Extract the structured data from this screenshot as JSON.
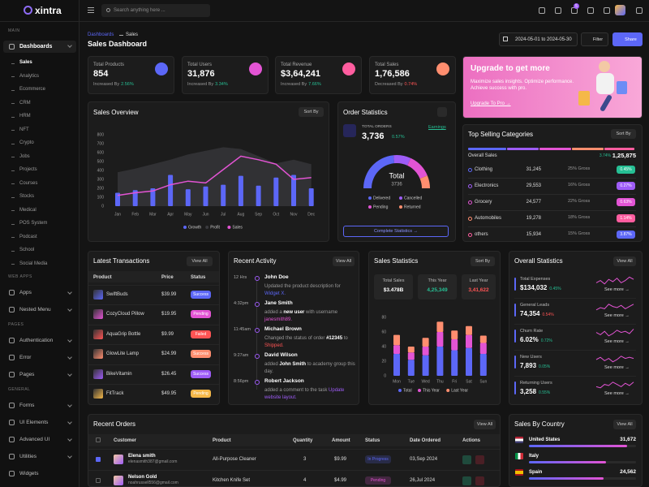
{
  "header": {
    "logo": "xintra",
    "search_placeholder": "Search anything here ...",
    "cart_badge": "5"
  },
  "sidebar": {
    "main_label": "MAIN",
    "dashboards": "Dashboards",
    "dashboard_items": [
      "Sales",
      "Analytics",
      "Ecommerce",
      "CRM",
      "HRM",
      "NFT",
      "Crypto",
      "Jobs",
      "Projects",
      "Courses",
      "Stocks",
      "Medical",
      "POS System",
      "Podcast",
      "School",
      "Social Media"
    ],
    "groups": [
      {
        "label": "WEB APPS",
        "items": [
          "Apps",
          "Nested Menu"
        ]
      },
      {
        "label": "PAGES",
        "items": [
          "Authentication",
          "Error",
          "Pages"
        ]
      },
      {
        "label": "GENERAL",
        "items": [
          "Forms",
          "UI Elements",
          "Advanced UI",
          "Utilities",
          "Widgets"
        ]
      }
    ]
  },
  "page_header": {
    "breadcrumb": [
      "Dashboards",
      "Sales"
    ],
    "title": "Sales Dashboard",
    "date_range": "2024-05-01 to 2024-05-30",
    "filter": "Filter",
    "share": "Share"
  },
  "stat_cards": [
    {
      "title": "Total Products",
      "value": "854",
      "note": "Increased By",
      "change": "2.56%",
      "change_color": "#26bf94",
      "icon_color": "#5c67f7"
    },
    {
      "title": "Total Users",
      "value": "31,876",
      "note": "Increased By",
      "change": "3.34%",
      "change_color": "#26bf94",
      "icon_color": "#e354d4"
    },
    {
      "title": "Total Revenue",
      "value": "$3,64,241",
      "note": "Increased By",
      "change": "7.66%",
      "change_color": "#26bf94",
      "icon_color": "#ff5d9f"
    },
    {
      "title": "Total Sales",
      "value": "1,76,586",
      "note": "Decreased By",
      "change": "0.74%",
      "change_color": "#fe5454",
      "icon_color": "#ff8e6f"
    }
  ],
  "promo": {
    "title": "Upgrade to get more",
    "text": "Maximize sales insights. Optimize performance. Achieve success with pro.",
    "link": "Upgrade To Pro →"
  },
  "top_selling": {
    "title": "Top Selling Categories",
    "sort_button": "Sort By",
    "overall_label": "Overall Sales",
    "overall_change": "3.74%",
    "overall_value": "1,25,875",
    "rows": [
      {
        "name": "Clothing",
        "value": "31,245",
        "gross": "25% Gross",
        "change": "0.45%",
        "color": "#26bf94",
        "dot": "#5c67f7"
      },
      {
        "name": "Electronics",
        "value": "29,553",
        "gross": "16% Gross",
        "change": "0.27%",
        "color": "#9e5cf7",
        "dot": "#9e5cf7"
      },
      {
        "name": "Grocery",
        "value": "24,577",
        "gross": "22% Gross",
        "change": "0.63%",
        "color": "#e354d4",
        "dot": "#e354d4"
      },
      {
        "name": "Automobiles",
        "value": "19,278",
        "gross": "18% Gross",
        "change": "1.14%",
        "color": "#ff5d9f",
        "dot": "#ff8e6f"
      },
      {
        "name": "others",
        "value": "15,934",
        "gross": "15% Gross",
        "change": "3.87%",
        "color": "#5c67f7",
        "dot": "#ff5d9f"
      }
    ]
  },
  "latest_transactions": {
    "title": "Latest Transactions",
    "view_all": "View All",
    "columns": [
      "Product",
      "Price",
      "Status"
    ],
    "rows": [
      {
        "product": "SwiftBuds",
        "price": "$39.99",
        "status": "Success",
        "color": "#5c67f7"
      },
      {
        "product": "CozyCloud Pillow",
        "price": "$19.95",
        "status": "Pending",
        "color": "#e354d4"
      },
      {
        "product": "AquaGrip Bottle",
        "price": "$9.99",
        "status": "Failed",
        "color": "#fe5454"
      },
      {
        "product": "GlowLite Lamp",
        "price": "$24.99",
        "status": "Success",
        "color": "#ff8e6f"
      },
      {
        "product": "BikeVitamin",
        "price": "$26.45",
        "status": "Success",
        "color": "#9e5cf7"
      },
      {
        "product": "FitTrack",
        "price": "$49.95",
        "status": "Pending",
        "color": "#f5b849"
      }
    ]
  },
  "recent_activity": {
    "title": "Recent Activity",
    "view_all": "View All",
    "items": [
      {
        "time": "12 Hrs",
        "name": "John Doe",
        "text": [
          {
            "text": "Updated the product description for "
          },
          {
            "text": "Widget X.",
            "color": "#5c67f7"
          }
        ]
      },
      {
        "time": "4:32pm",
        "name": "Jane Smith",
        "text": [
          {
            "text": "added a "
          },
          {
            "text": "new user",
            "color": "#ffffff",
            "weight": "bold"
          },
          {
            "text": " with username "
          },
          {
            "text": "janesmith89.",
            "color": "#e354d4"
          }
        ]
      },
      {
        "time": "11:45am",
        "name": "Michael Brown",
        "text": [
          {
            "text": "Changed the status of order "
          },
          {
            "text": "#12345",
            "color": "#ffffff",
            "weight": "bold"
          },
          {
            "text": " to "
          },
          {
            "text": "Shipped.",
            "color": "#fe5454"
          }
        ]
      },
      {
        "time": "9:27am",
        "name": "David Wilson",
        "text": [
          {
            "text": "added "
          },
          {
            "text": "John Smith",
            "color": "#ffffff",
            "weight": "bold"
          },
          {
            "text": " to academy group this day."
          }
        ]
      },
      {
        "time": "8:56pm",
        "name": "Robert Jackson",
        "text": [
          {
            "text": "added a comment to the task "
          },
          {
            "text": "Update website layout.",
            "color": "#9e5cf7"
          }
        ]
      }
    ]
  },
  "overall_statistics": {
    "title": "Overall Statistics",
    "view_all": "View All",
    "see_more": "See more →",
    "rows": [
      {
        "label": "Total Expenses",
        "value": "$134,032",
        "change": "0.45%",
        "color": "#26bf94"
      },
      {
        "label": "General Leads",
        "value": "74,354",
        "change": "0.54%",
        "color": "#fe5454"
      },
      {
        "label": "Churn Rate",
        "value": "6.02%",
        "change": "0.72%",
        "color": "#26bf94"
      },
      {
        "label": "New Users",
        "value": "7,893",
        "change": "0.05%",
        "color": "#26bf94"
      },
      {
        "label": "Returning Users",
        "value": "3,258",
        "change": "0.55%",
        "color": "#26bf94"
      }
    ]
  },
  "recent_orders": {
    "title": "Recent Orders",
    "view_all": "View All",
    "columns": [
      "Customer",
      "Product",
      "Quantity",
      "Amount",
      "Status",
      "Date Ordered",
      "Actions"
    ],
    "rows": [
      {
        "name": "Elena smith",
        "email": "elenasmith387@gmail.com",
        "product": "All-Purpose Cleaner",
        "quantity": "3",
        "amount": "$9.99",
        "status": "In Progress",
        "date": "03,Sep 2024",
        "color": "#5c67f7"
      },
      {
        "name": "Nelson Gold",
        "email": "noahrussell556@gmail.com",
        "product": "Kitchen Knife Set",
        "quantity": "4",
        "amount": "$4.99",
        "status": "Pending",
        "date": "26,Jul 2024",
        "color": "#e354d4"
      }
    ]
  },
  "sales_by_country": {
    "title": "Sales By Country",
    "view_all": "View All",
    "rows": [
      {
        "country": "United States",
        "value": "31,672"
      },
      {
        "country": "Italy"
      },
      {
        "country": "Spain",
        "value": "24,562"
      }
    ]
  },
  "chart_data": [
    {
      "type": "bar",
      "title": "Sales Overview",
      "sort_button": "Sort By",
      "categories": [
        "Jan",
        "Feb",
        "Mar",
        "Apr",
        "May",
        "Jun",
        "Jul",
        "Aug",
        "Sep",
        "Oct",
        "Nov",
        "Dec"
      ],
      "ylim": [
        0,
        800
      ],
      "yticks": [
        0,
        100,
        200,
        300,
        400,
        500,
        600,
        700,
        800
      ],
      "grid": false,
      "series": [
        {
          "name": "Growth",
          "type": "bar",
          "color": "#5c67f7",
          "values": [
            150,
            180,
            200,
            350,
            190,
            220,
            240,
            340,
            230,
            320,
            350,
            200
          ]
        },
        {
          "name": "Profit",
          "type": "area",
          "color": "#3a3a3e",
          "values": [
            380,
            420,
            470,
            520,
            580,
            620,
            660,
            640,
            560,
            480,
            520,
            470
          ]
        },
        {
          "name": "Sales",
          "type": "line",
          "color": "#e354d4",
          "values": [
            120,
            150,
            170,
            240,
            280,
            260,
            410,
            560,
            520,
            470,
            300,
            320
          ]
        }
      ]
    },
    {
      "type": "donut",
      "title": "Order Statistics",
      "label": "TOTAL ORDERS",
      "total_value": "3,736",
      "change": "0.57%",
      "link": "Earnings",
      "center_label": "Total",
      "center_value": "3736",
      "button": "Complete Statistics →",
      "categories": [
        "Delivered",
        "Cancelled",
        "Pending",
        "Returned"
      ],
      "values": [
        1754,
        634,
        878,
        470
      ],
      "colors": [
        "#5c67f7",
        "#9e5cf7",
        "#e354d4",
        "#ff8e6f"
      ]
    },
    {
      "type": "bar",
      "stacked": true,
      "title": "Sales Statistics",
      "sort_button": "Sort By",
      "summary": [
        {
          "label": "Total Sales",
          "value": "$3.478B",
          "color": "#ffffff"
        },
        {
          "label": "This Year",
          "value": "4,25,349",
          "color": "#26bf94"
        },
        {
          "label": "Last Year",
          "value": "3,41,622",
          "color": "#fe5454"
        }
      ],
      "categories": [
        "Mon",
        "Tue",
        "Wed",
        "Thu",
        "Fri",
        "Sat",
        "Sun"
      ],
      "ylim": [
        0,
        80
      ],
      "yticks": [
        0,
        20,
        40,
        60,
        80
      ],
      "series": [
        {
          "name": "Total",
          "color": "#5c67f7",
          "values": [
            30,
            22,
            28,
            40,
            35,
            38,
            30
          ]
        },
        {
          "name": "This Year",
          "color": "#e354d4",
          "values": [
            12,
            10,
            12,
            20,
            15,
            18,
            15
          ]
        },
        {
          "name": "Last Year",
          "color": "#ff8e6f",
          "values": [
            14,
            8,
            12,
            14,
            12,
            12,
            10
          ]
        }
      ]
    },
    {
      "type": "line",
      "color": "#e354d4",
      "ylim": [
        0,
        10
      ],
      "values": [
        4,
        6,
        3,
        7,
        5,
        8,
        4,
        6,
        9,
        7
      ]
    },
    {
      "type": "line",
      "color": "#e354d4",
      "ylim": [
        0,
        10
      ],
      "values": [
        3,
        5,
        4,
        8,
        6,
        5,
        7,
        4,
        6,
        8
      ]
    },
    {
      "type": "line",
      "color": "#e354d4",
      "ylim": [
        0,
        10
      ],
      "values": [
        6,
        4,
        7,
        3,
        5,
        8,
        6,
        7,
        5,
        9
      ]
    },
    {
      "type": "line",
      "color": "#e354d4",
      "ylim": [
        0,
        10
      ],
      "values": [
        5,
        7,
        4,
        6,
        3,
        5,
        8,
        6,
        7,
        6
      ]
    },
    {
      "type": "line",
      "color": "#e354d4",
      "ylim": [
        0,
        10
      ],
      "values": [
        4,
        3,
        6,
        5,
        8,
        6,
        4,
        7,
        5,
        8
      ]
    }
  ]
}
